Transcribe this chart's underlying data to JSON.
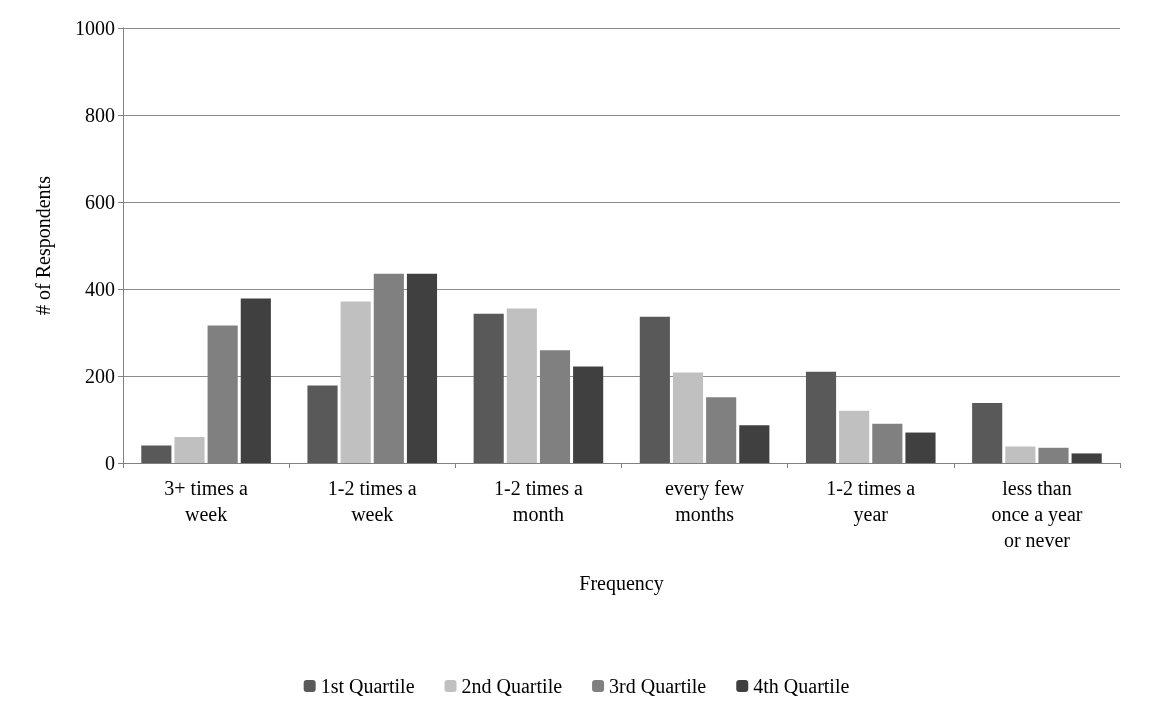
{
  "chart_data": {
    "type": "bar",
    "xlabel": "Frequency",
    "ylabel": "# of Respondents",
    "categories": [
      "3+ times a week",
      "1-2 times a week",
      "1-2 times a month",
      "every few months",
      "1-2 times a year",
      "less than once a year or never"
    ],
    "series": [
      {
        "name": "1st Quartile",
        "color": "#595959",
        "values": [
          40,
          178,
          343,
          336,
          210,
          138
        ]
      },
      {
        "name": "2nd Quartile",
        "color": "#c0c0c0",
        "values": [
          60,
          371,
          355,
          208,
          120,
          38
        ]
      },
      {
        "name": "3rd Quartile",
        "color": "#808080",
        "values": [
          316,
          435,
          259,
          151,
          90,
          35
        ]
      },
      {
        "name": "4th Quartile",
        "color": "#404040",
        "values": [
          378,
          435,
          222,
          87,
          70,
          22
        ]
      }
    ],
    "ylim": [
      0,
      1000
    ],
    "yticks": [
      0,
      200,
      400,
      600,
      800,
      1000
    ],
    "grid": "y",
    "legend": "bottom"
  }
}
